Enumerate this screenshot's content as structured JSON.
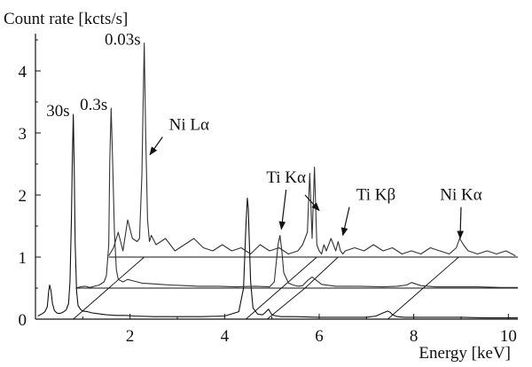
{
  "chart_data": {
    "type": "line",
    "title": "",
    "xlabel": "Energy [keV]",
    "ylabel": "Count rate [kcts/s]",
    "xlim": [
      0,
      10.2
    ],
    "ylim": [
      0,
      4.6
    ],
    "xticks": [
      2,
      4,
      6,
      8,
      10
    ],
    "xtick_labels": [
      "2",
      "4",
      "6",
      "8",
      "10"
    ],
    "yticks": [
      0,
      1,
      2,
      3,
      4
    ],
    "ytick_labels": [
      "0",
      "1",
      "2",
      "3",
      "4"
    ],
    "grid": false,
    "legend": "none",
    "display": "waterfall",
    "series_offsets_note": "",
    "series": [
      {
        "name": "30s",
        "label_text": "30s",
        "offset_x": 0,
        "offset_y": 0,
        "color": "#111111",
        "x": [
          0.05,
          0.1,
          0.15,
          0.2,
          0.25,
          0.28,
          0.3,
          0.33,
          0.36,
          0.4,
          0.45,
          0.5,
          0.55,
          0.6,
          0.65,
          0.7,
          0.73,
          0.76,
          0.78,
          0.8,
          0.82,
          0.84,
          0.87,
          0.9,
          0.95,
          1.0,
          1.1,
          1.2,
          1.3,
          1.4,
          1.5,
          1.7,
          1.9,
          2.1,
          2.5,
          3.0,
          3.5,
          4.0,
          4.3,
          4.4,
          4.45,
          4.48,
          4.5,
          4.52,
          4.55,
          4.6,
          4.7,
          4.8,
          4.85,
          4.9,
          4.93,
          4.96,
          5.0,
          5.1,
          5.2,
          5.5,
          6.0,
          6.5,
          7.0,
          7.2,
          7.35,
          7.45,
          7.5,
          7.55,
          7.65,
          7.8,
          8.2,
          8.6,
          9.0,
          9.5,
          10.0,
          10.2
        ],
        "y": [
          0.05,
          0.07,
          0.09,
          0.12,
          0.2,
          0.45,
          0.55,
          0.45,
          0.25,
          0.14,
          0.1,
          0.09,
          0.1,
          0.12,
          0.15,
          0.25,
          0.6,
          1.6,
          2.6,
          3.3,
          2.4,
          1.2,
          0.45,
          0.22,
          0.16,
          0.13,
          0.12,
          0.1,
          0.09,
          0.08,
          0.07,
          0.06,
          0.06,
          0.05,
          0.04,
          0.04,
          0.04,
          0.05,
          0.12,
          0.5,
          1.5,
          1.95,
          1.8,
          1.3,
          0.6,
          0.18,
          0.08,
          0.07,
          0.1,
          0.14,
          0.16,
          0.12,
          0.07,
          0.05,
          0.04,
          0.04,
          0.03,
          0.03,
          0.03,
          0.05,
          0.1,
          0.13,
          0.11,
          0.07,
          0.04,
          0.03,
          0.03,
          0.03,
          0.03,
          0.02,
          0.02,
          0.02
        ]
      },
      {
        "name": "0.3s",
        "label_text": "0.3s",
        "offset_x": 0.85,
        "offset_y": 0.5,
        "color": "#333333",
        "x": [
          0,
          0.1,
          0.2,
          0.3,
          0.4,
          0.5,
          0.6,
          0.65,
          0.7,
          0.72,
          0.75,
          0.78,
          0.82,
          0.86,
          0.9,
          1.0,
          1.1,
          1.2,
          1.4,
          1.6,
          1.8,
          2.0,
          2.3,
          2.6,
          3.0,
          3.4,
          3.8,
          4.1,
          4.2,
          4.28,
          4.32,
          4.36,
          4.4,
          4.5,
          4.6,
          4.7,
          4.8,
          4.9,
          5.0,
          5.2,
          5.5,
          6.0,
          6.5,
          6.8,
          7.0,
          7.1,
          7.3,
          7.6,
          8.0,
          8.5,
          9.0,
          9.35
        ],
        "y": [
          0,
          0.02,
          0.03,
          0.01,
          0.03,
          0.05,
          0.1,
          0.2,
          0.7,
          2.0,
          2.9,
          2.1,
          0.9,
          0.3,
          0.14,
          0.1,
          0.14,
          0.12,
          0.08,
          0.07,
          0.06,
          0.05,
          0.04,
          0.03,
          0.03,
          0.02,
          0.03,
          0.02,
          0.1,
          0.7,
          0.85,
          0.6,
          0.25,
          0.08,
          0.05,
          0.03,
          0.04,
          0.12,
          0.18,
          0.06,
          0.03,
          0.03,
          0.02,
          0.03,
          0.05,
          0.09,
          0.04,
          0.02,
          0.02,
          0.02,
          0.01,
          0.01
        ]
      },
      {
        "name": "0.03s",
        "label_text": "0.03s",
        "offset_x": 1.55,
        "offset_y": 1.0,
        "color": "#333333",
        "x": [
          0,
          0.1,
          0.2,
          0.3,
          0.4,
          0.5,
          0.6,
          0.65,
          0.7,
          0.72,
          0.75,
          0.78,
          0.82,
          0.86,
          0.9,
          1.0,
          1.2,
          1.4,
          1.6,
          1.8,
          2.0,
          2.2,
          2.4,
          2.6,
          2.8,
          3.0,
          3.2,
          3.4,
          3.6,
          3.8,
          4.0,
          4.1,
          4.2,
          4.25,
          4.3,
          4.35,
          4.4,
          4.45,
          4.5,
          4.55,
          4.6,
          4.7,
          4.8,
          4.85,
          4.9,
          4.95,
          5.0,
          5.2,
          5.4,
          5.6,
          5.8,
          6.0,
          6.2,
          6.4,
          6.6,
          6.8,
          7.0,
          7.2,
          7.35,
          7.42,
          7.5,
          7.6,
          7.8,
          8.0,
          8.2,
          8.4,
          8.6
        ],
        "y": [
          0.02,
          0.15,
          0.4,
          0.1,
          0.6,
          0.3,
          0.25,
          0.3,
          1.3,
          2.2,
          3.45,
          2.0,
          0.6,
          0.25,
          0.35,
          0.2,
          0.3,
          0.1,
          0.2,
          0.3,
          0.15,
          0.1,
          0.2,
          0.1,
          0.15,
          0.05,
          0.2,
          0.1,
          0.15,
          0.05,
          0.1,
          0.2,
          0.4,
          1.35,
          0.3,
          1.45,
          0.2,
          0.1,
          0.05,
          0.2,
          0.1,
          0.3,
          0.1,
          0.25,
          0.1,
          0.05,
          0.1,
          0.15,
          0.1,
          0.2,
          0.1,
          0.15,
          0.05,
          0.1,
          0.05,
          0.15,
          0.1,
          0.05,
          0.15,
          0.3,
          0.2,
          0.1,
          0.05,
          0.1,
          0.05,
          0.1,
          0.02
        ]
      }
    ],
    "connector_lines": [
      {
        "from": [
          0.8,
          0.0
        ],
        "to": [
          1.55,
          0.5
        ]
      },
      {
        "from": [
          1.55,
          0.5
        ],
        "to": [
          2.3,
          1.0
        ]
      },
      {
        "from": [
          4.45,
          0.0
        ],
        "to": [
          5.2,
          0.5
        ]
      },
      {
        "from": [
          5.2,
          0.5
        ],
        "to": [
          5.95,
          1.0
        ]
      },
      {
        "from": [
          4.9,
          0.0
        ],
        "to": [
          5.7,
          0.5
        ]
      },
      {
        "from": [
          5.7,
          0.5
        ],
        "to": [
          6.4,
          1.0
        ]
      },
      {
        "from": [
          7.45,
          0.0
        ],
        "to": [
          8.2,
          0.5
        ]
      },
      {
        "from": [
          8.2,
          0.5
        ],
        "to": [
          8.95,
          1.0
        ]
      }
    ],
    "baselines": [
      {
        "x_from": 0.85,
        "x_to": 10.2,
        "y": 0.5
      },
      {
        "x_from": 1.55,
        "x_to": 10.2,
        "y": 1.0
      }
    ],
    "annotations": [
      {
        "text": "Ni Lα",
        "tx": 3.25,
        "ty": 3.05,
        "ax": 2.42,
        "ay": 2.65
      },
      {
        "text": "Ti Kα",
        "tx": 5.3,
        "ty": 2.2,
        "ax": 5.2,
        "ay": 1.45
      },
      {
        "text": "Ti Kβ",
        "tx": 7.2,
        "ty": 1.92,
        "ax": 6.5,
        "ay": 1.35
      },
      {
        "text": "Ni Kα",
        "tx": 9.0,
        "ty": 1.92,
        "ax": 8.98,
        "ay": 1.3
      }
    ],
    "extra_arrows": [
      {
        "from": [
          5.7,
          2.0
        ],
        "to": [
          6.0,
          1.75
        ]
      }
    ]
  }
}
